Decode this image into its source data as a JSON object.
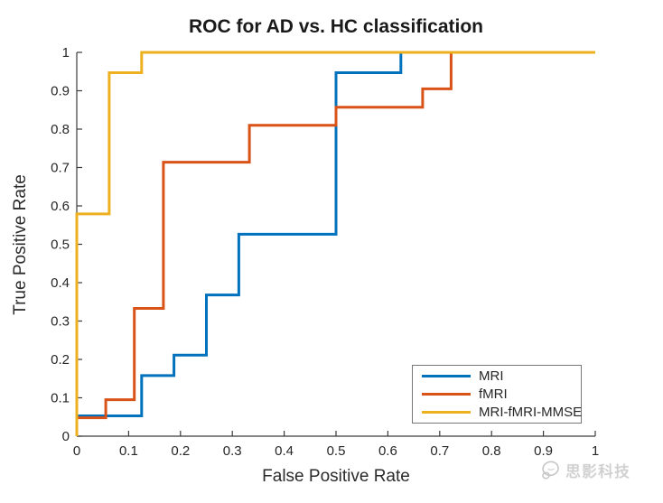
{
  "watermark": {
    "text": "思影科技",
    "color": "#c3c3c3"
  },
  "chart_data": {
    "type": "line",
    "subtype": "roc-step-curves",
    "title": "ROC for AD vs. HC classification",
    "xlabel": "False Positive Rate",
    "ylabel": "True Positive Rate",
    "xlim": [
      0,
      1
    ],
    "ylim": [
      0,
      1
    ],
    "grid": false,
    "box": false,
    "axis_color": "#3b3b3b",
    "tick_label_color": "#262626",
    "legend_position": "inside-lower-right",
    "xticks": [
      0,
      0.1,
      0.2,
      0.3,
      0.4,
      0.5,
      0.6,
      0.7,
      0.8,
      0.9,
      1
    ],
    "xtick_labels": [
      "0",
      "0.1",
      "0.2",
      "0.3",
      "0.4",
      "0.5",
      "0.6",
      "0.7",
      "0.8",
      "0.9",
      "1"
    ],
    "yticks": [
      0,
      0.1,
      0.2,
      0.3,
      0.4,
      0.5,
      0.6,
      0.7,
      0.8,
      0.9,
      1
    ],
    "ytick_labels": [
      "0",
      "0.1",
      "0.2",
      "0.3",
      "0.4",
      "0.5",
      "0.6",
      "0.7",
      "0.8",
      "0.9",
      "1"
    ],
    "series": [
      {
        "name": "MRI",
        "color": "#0072BD",
        "points": [
          [
            0,
            0
          ],
          [
            0,
            0.053
          ],
          [
            0.125,
            0.053
          ],
          [
            0.125,
            0.158
          ],
          [
            0.1875,
            0.158
          ],
          [
            0.1875,
            0.211
          ],
          [
            0.25,
            0.211
          ],
          [
            0.25,
            0.368
          ],
          [
            0.3125,
            0.368
          ],
          [
            0.3125,
            0.526
          ],
          [
            0.5,
            0.526
          ],
          [
            0.5,
            0.947
          ],
          [
            0.625,
            0.947
          ],
          [
            0.625,
            1
          ],
          [
            1,
            1
          ]
        ]
      },
      {
        "name": "fMRI",
        "color": "#D95319",
        "points": [
          [
            0,
            0
          ],
          [
            0,
            0.048
          ],
          [
            0.056,
            0.048
          ],
          [
            0.056,
            0.095
          ],
          [
            0.111,
            0.095
          ],
          [
            0.111,
            0.333
          ],
          [
            0.167,
            0.333
          ],
          [
            0.167,
            0.714
          ],
          [
            0.333,
            0.714
          ],
          [
            0.333,
            0.81
          ],
          [
            0.5,
            0.81
          ],
          [
            0.5,
            0.857
          ],
          [
            0.667,
            0.857
          ],
          [
            0.667,
            0.905
          ],
          [
            0.722,
            0.905
          ],
          [
            0.722,
            1
          ],
          [
            1,
            1
          ]
        ]
      },
      {
        "name": "MRI-fMRI-MMSE",
        "color": "#EDB120",
        "points": [
          [
            0,
            0
          ],
          [
            0,
            0.579
          ],
          [
            0.0625,
            0.579
          ],
          [
            0.0625,
            0.947
          ],
          [
            0.125,
            0.947
          ],
          [
            0.125,
            1
          ],
          [
            1,
            1
          ]
        ]
      }
    ]
  }
}
